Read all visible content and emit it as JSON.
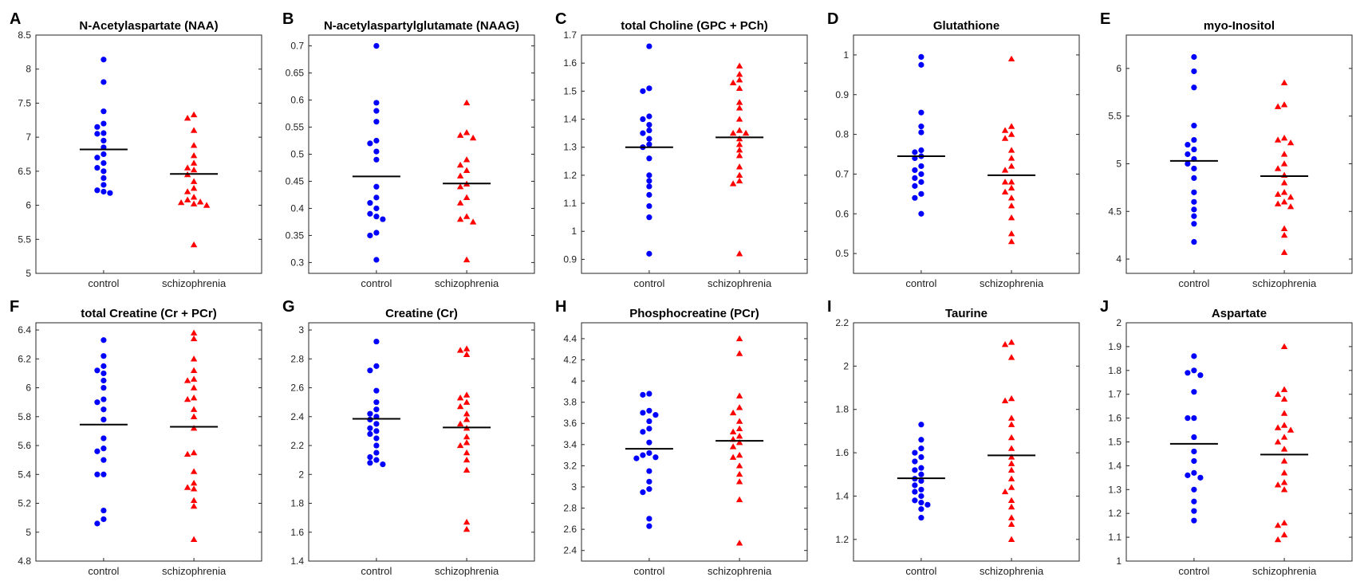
{
  "figure": {
    "categories": [
      "control",
      "schizophrenia"
    ]
  },
  "colors": {
    "control": "#0000ff",
    "schizophrenia": "#ff0000",
    "mean_line": "#000000",
    "axis": "#262626"
  },
  "markers": {
    "control": "circle",
    "schizophrenia": "triangle"
  },
  "chart_data": [
    {
      "letter": "A",
      "title": "N-Acetylaspartate (NAA)",
      "type": "scatter",
      "categories": [
        "control",
        "schizophrenia"
      ],
      "ylim": [
        5,
        8.5
      ],
      "yticks": [
        "5",
        "5.5",
        "6",
        "6.5",
        "7",
        "7.5",
        "8",
        "8.5"
      ],
      "series": [
        {
          "values": [
            8.14,
            7.81,
            7.38,
            7.2,
            7.15,
            7.06,
            7.05,
            6.95,
            6.85,
            6.75,
            6.7,
            6.62,
            6.55,
            6.5,
            6.4,
            6.3,
            6.22,
            6.2,
            6.18
          ],
          "mean": 6.82
        },
        {
          "values": [
            7.33,
            7.28,
            7.1,
            6.88,
            6.73,
            6.62,
            6.55,
            6.52,
            6.45,
            6.35,
            6.25,
            6.2,
            6.12,
            6.08,
            6.05,
            6.04,
            6.02,
            6.0,
            5.42
          ],
          "mean": 6.46
        }
      ]
    },
    {
      "letter": "B",
      "title": "N-acetylaspartylglutamate (NAAG)",
      "type": "scatter",
      "categories": [
        "control",
        "schizophrenia"
      ],
      "ylim": [
        0.28,
        0.72
      ],
      "yticks": [
        "0.3",
        "0.35",
        "0.4",
        "0.45",
        "0.5",
        "0.55",
        "0.6",
        "0.65",
        "0.7"
      ],
      "series": [
        {
          "values": [
            0.7,
            0.595,
            0.58,
            0.56,
            0.525,
            0.52,
            0.505,
            0.49,
            0.44,
            0.42,
            0.41,
            0.4,
            0.39,
            0.385,
            0.38,
            0.355,
            0.35,
            0.305
          ],
          "mean": 0.459
        },
        {
          "values": [
            0.595,
            0.54,
            0.535,
            0.53,
            0.49,
            0.48,
            0.47,
            0.46,
            0.445,
            0.44,
            0.42,
            0.41,
            0.385,
            0.38,
            0.375,
            0.305
          ],
          "mean": 0.446
        }
      ]
    },
    {
      "letter": "C",
      "title": "total Choline (GPC + PCh)",
      "type": "scatter",
      "categories": [
        "control",
        "schizophrenia"
      ],
      "ylim": [
        0.85,
        1.7
      ],
      "yticks": [
        "0.9",
        "1",
        "1.1",
        "1.2",
        "1.3",
        "1.4",
        "1.5",
        "1.6",
        "1.7"
      ],
      "series": [
        {
          "values": [
            1.66,
            1.51,
            1.5,
            1.41,
            1.4,
            1.38,
            1.36,
            1.35,
            1.33,
            1.31,
            1.3,
            1.26,
            1.2,
            1.18,
            1.16,
            1.13,
            1.09,
            1.05,
            0.92
          ],
          "mean": 1.3
        },
        {
          "values": [
            1.59,
            1.56,
            1.54,
            1.53,
            1.51,
            1.46,
            1.44,
            1.4,
            1.36,
            1.35,
            1.35,
            1.33,
            1.31,
            1.29,
            1.27,
            1.23,
            1.2,
            1.18,
            1.17,
            0.92
          ],
          "mean": 1.335
        }
      ]
    },
    {
      "letter": "D",
      "title": "Glutathione",
      "type": "scatter",
      "categories": [
        "control",
        "schizophrenia"
      ],
      "ylim": [
        0.45,
        1.05
      ],
      "yticks": [
        "0.5",
        "0.6",
        "0.7",
        "0.8",
        "0.9",
        "1"
      ],
      "series": [
        {
          "values": [
            0.995,
            0.975,
            0.855,
            0.82,
            0.805,
            0.76,
            0.755,
            0.745,
            0.74,
            0.72,
            0.71,
            0.7,
            0.69,
            0.68,
            0.67,
            0.65,
            0.64,
            0.6
          ],
          "mean": 0.745
        },
        {
          "values": [
            0.99,
            0.82,
            0.81,
            0.8,
            0.79,
            0.76,
            0.74,
            0.72,
            0.71,
            0.68,
            0.68,
            0.665,
            0.655,
            0.64,
            0.62,
            0.59,
            0.55,
            0.53
          ],
          "mean": 0.697
        }
      ]
    },
    {
      "letter": "E",
      "title": "myo-Inositol",
      "type": "scatter",
      "categories": [
        "control",
        "schizophrenia"
      ],
      "ylim": [
        3.85,
        6.35
      ],
      "yticks": [
        "4",
        "4.5",
        "5",
        "5.5",
        "6"
      ],
      "series": [
        {
          "values": [
            6.12,
            5.97,
            5.8,
            5.4,
            5.25,
            5.2,
            5.15,
            5.1,
            5.05,
            5.0,
            4.95,
            4.85,
            4.7,
            4.6,
            4.52,
            4.45,
            4.37,
            4.18
          ],
          "mean": 5.03
        },
        {
          "values": [
            5.85,
            5.62,
            5.6,
            5.27,
            5.25,
            5.22,
            5.1,
            5.0,
            4.95,
            4.88,
            4.8,
            4.7,
            4.68,
            4.65,
            4.6,
            4.58,
            4.55,
            4.32,
            4.25,
            4.07
          ],
          "mean": 4.87
        }
      ]
    },
    {
      "letter": "F",
      "title": "total Creatine (Cr + PCr)",
      "type": "scatter",
      "categories": [
        "control",
        "schizophrenia"
      ],
      "ylim": [
        4.8,
        6.45
      ],
      "yticks": [
        "4.8",
        "5",
        "5.2",
        "5.4",
        "5.6",
        "5.8",
        "6",
        "6.2",
        "6.4"
      ],
      "series": [
        {
          "values": [
            6.33,
            6.22,
            6.15,
            6.12,
            6.1,
            6.05,
            6.0,
            5.92,
            5.9,
            5.85,
            5.78,
            5.65,
            5.58,
            5.56,
            5.5,
            5.4,
            5.4,
            5.15,
            5.09,
            5.06
          ],
          "mean": 5.745
        },
        {
          "values": [
            6.38,
            6.34,
            6.2,
            6.12,
            6.06,
            6.05,
            6.0,
            5.93,
            5.92,
            5.85,
            5.8,
            5.72,
            5.55,
            5.54,
            5.42,
            5.34,
            5.31,
            5.3,
            5.22,
            5.18,
            4.95
          ],
          "mean": 5.73
        }
      ]
    },
    {
      "letter": "G",
      "title": "Creatine (Cr)",
      "type": "scatter",
      "categories": [
        "control",
        "schizophrenia"
      ],
      "ylim": [
        1.4,
        3.05
      ],
      "yticks": [
        "1.4",
        "1.6",
        "1.8",
        "2",
        "2.2",
        "2.4",
        "2.6",
        "2.8",
        "3"
      ],
      "series": [
        {
          "values": [
            2.92,
            2.75,
            2.72,
            2.58,
            2.5,
            2.45,
            2.42,
            2.4,
            2.38,
            2.35,
            2.32,
            2.3,
            2.28,
            2.25,
            2.2,
            2.15,
            2.12,
            2.1,
            2.08,
            2.07
          ],
          "mean": 2.385
        },
        {
          "values": [
            2.87,
            2.86,
            2.83,
            2.55,
            2.53,
            2.5,
            2.47,
            2.42,
            2.38,
            2.35,
            2.32,
            2.26,
            2.22,
            2.2,
            2.15,
            2.1,
            2.03,
            1.67,
            1.62
          ],
          "mean": 2.325
        }
      ]
    },
    {
      "letter": "H",
      "title": "Phosphocreatine (PCr)",
      "type": "scatter",
      "categories": [
        "control",
        "schizophrenia"
      ],
      "ylim": [
        2.3,
        4.55
      ],
      "yticks": [
        "2.4",
        "2.6",
        "2.8",
        "3",
        "3.2",
        "3.4",
        "3.6",
        "3.8",
        "4",
        "4.2",
        "4.4"
      ],
      "series": [
        {
          "values": [
            3.88,
            3.87,
            3.72,
            3.7,
            3.68,
            3.62,
            3.55,
            3.52,
            3.42,
            3.32,
            3.3,
            3.28,
            3.27,
            3.15,
            3.05,
            2.98,
            2.95,
            2.7,
            2.63
          ],
          "mean": 3.36
        },
        {
          "values": [
            4.4,
            4.26,
            3.86,
            3.75,
            3.7,
            3.62,
            3.55,
            3.52,
            3.48,
            3.45,
            3.42,
            3.38,
            3.3,
            3.28,
            3.2,
            3.12,
            3.05,
            2.88,
            2.47
          ],
          "mean": 3.435
        }
      ]
    },
    {
      "letter": "I",
      "title": "Taurine",
      "type": "scatter",
      "categories": [
        "control",
        "schizophrenia"
      ],
      "ylim": [
        1.1,
        2.2
      ],
      "yticks": [
        "1.2",
        "1.4",
        "1.6",
        "1.8",
        "2",
        "2.2"
      ],
      "series": [
        {
          "values": [
            1.73,
            1.66,
            1.62,
            1.6,
            1.58,
            1.56,
            1.53,
            1.52,
            1.5,
            1.48,
            1.47,
            1.45,
            1.43,
            1.42,
            1.4,
            1.38,
            1.37,
            1.36,
            1.34,
            1.3
          ],
          "mean": 1.482
        },
        {
          "values": [
            2.11,
            2.1,
            2.04,
            1.85,
            1.84,
            1.76,
            1.73,
            1.67,
            1.62,
            1.58,
            1.55,
            1.52,
            1.48,
            1.44,
            1.42,
            1.38,
            1.35,
            1.3,
            1.27,
            1.2
          ],
          "mean": 1.588
        }
      ]
    },
    {
      "letter": "J",
      "title": "Aspartate",
      "type": "scatter",
      "categories": [
        "control",
        "schizophrenia"
      ],
      "ylim": [
        1,
        2
      ],
      "yticks": [
        "1",
        "1.1",
        "1.2",
        "1.3",
        "1.4",
        "1.5",
        "1.6",
        "1.7",
        "1.8",
        "1.9",
        "2"
      ],
      "series": [
        {
          "values": [
            1.86,
            1.8,
            1.79,
            1.78,
            1.71,
            1.6,
            1.6,
            1.52,
            1.46,
            1.42,
            1.37,
            1.36,
            1.35,
            1.3,
            1.25,
            1.21,
            1.17
          ],
          "mean": 1.492
        },
        {
          "values": [
            1.9,
            1.72,
            1.7,
            1.68,
            1.62,
            1.57,
            1.56,
            1.55,
            1.52,
            1.5,
            1.47,
            1.42,
            1.37,
            1.33,
            1.32,
            1.3,
            1.16,
            1.15,
            1.11,
            1.09
          ],
          "mean": 1.447
        }
      ]
    }
  ]
}
